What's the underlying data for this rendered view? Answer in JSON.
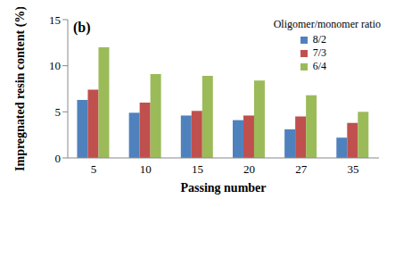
{
  "chart_data": {
    "type": "bar",
    "annotations": [
      "(b)"
    ],
    "legend_title": "Oligomer/monomer ratio",
    "x_label": "Passing number",
    "y_label": "Impregnated resin content (%)",
    "categories": [
      "5",
      "10",
      "15",
      "20",
      "27",
      "35"
    ],
    "series": [
      {
        "name": "8/2",
        "color": "#4f81bd",
        "values": [
          6.3,
          4.9,
          4.6,
          4.1,
          3.1,
          2.2
        ]
      },
      {
        "name": "7/3",
        "color": "#c0504d",
        "values": [
          7.4,
          6.0,
          5.1,
          4.6,
          4.5,
          3.8
        ]
      },
      {
        "name": "6/4",
        "color": "#9bbb59",
        "values": [
          12.0,
          9.1,
          8.9,
          8.4,
          6.8,
          5.0
        ]
      }
    ],
    "ylim": [
      0,
      15
    ],
    "yticks": [
      0,
      5,
      10,
      15
    ],
    "grid": false,
    "legend": "top-right"
  }
}
